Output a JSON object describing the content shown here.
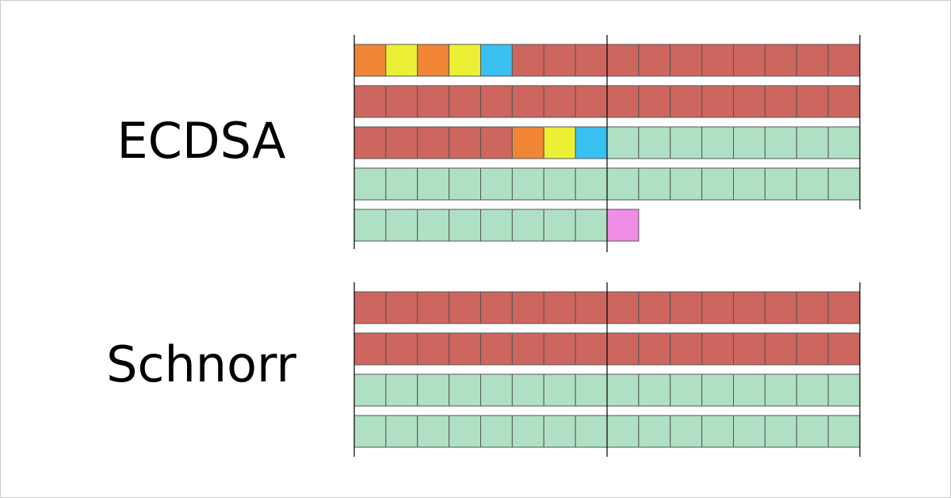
{
  "labels": {
    "ecdsa": "ECDSA",
    "schnorr": "Schnorr"
  }
}
